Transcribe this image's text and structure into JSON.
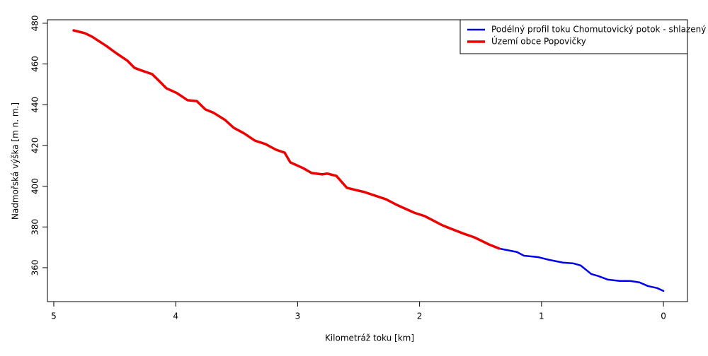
{
  "chart_data": {
    "type": "line",
    "xlabel": "Kilometráž toku [km]",
    "ylabel": "Nadmořská výška [m n. m.]",
    "x": [
      4.837,
      4.744,
      4.686,
      4.57,
      4.483,
      4.396,
      4.338,
      4.28,
      4.193,
      4.135,
      4.077,
      3.99,
      3.902,
      3.827,
      3.757,
      3.688,
      3.595,
      3.525,
      3.438,
      3.351,
      3.264,
      3.177,
      3.107,
      3.06,
      2.956,
      2.886,
      2.799,
      2.758,
      2.683,
      2.596,
      2.451,
      2.276,
      2.189,
      2.044,
      1.957,
      1.812,
      1.725,
      1.638,
      1.551,
      1.434,
      1.347,
      1.202,
      1.144,
      1.028,
      0.941,
      0.825,
      0.738,
      0.679,
      0.592,
      0.534,
      0.459,
      0.36,
      0.273,
      0.197,
      0.128,
      0.052,
      0.0
    ],
    "series": [
      {
        "name": "Podélný profil toku Chomutovický potok - shlazený",
        "color": "#0000ee",
        "width": 2.5,
        "values": [
          476.5,
          475.1,
          473.4,
          468.9,
          465.1,
          461.6,
          458.1,
          456.8,
          455.0,
          451.6,
          448.1,
          445.7,
          442.2,
          441.8,
          437.7,
          436.0,
          432.5,
          428.7,
          425.9,
          422.4,
          420.7,
          417.9,
          416.5,
          411.7,
          408.9,
          406.5,
          405.8,
          406.2,
          405.1,
          399.2,
          397.1,
          393.6,
          390.9,
          387.0,
          385.3,
          380.8,
          378.7,
          376.7,
          374.9,
          371.5,
          369.4,
          367.7,
          365.9,
          365.2,
          363.9,
          362.5,
          362.1,
          361.1,
          356.9,
          355.9,
          354.2,
          353.5,
          353.5,
          352.8,
          351.0,
          350.0,
          348.6
        ]
      },
      {
        "name": "Území obce Popovičky",
        "color": "#ee0000",
        "width": 3.5,
        "values": [
          476.5,
          475.1,
          473.4,
          468.9,
          465.1,
          461.6,
          458.1,
          456.8,
          455.0,
          451.6,
          448.1,
          445.7,
          442.2,
          441.8,
          437.7,
          436.0,
          432.5,
          428.7,
          425.9,
          422.4,
          420.7,
          417.9,
          416.5,
          411.7,
          408.9,
          406.5,
          405.8,
          406.2,
          405.1,
          399.2,
          397.1,
          393.6,
          390.9,
          387.0,
          385.3,
          380.8,
          378.7,
          376.7,
          374.9,
          371.5,
          369.4,
          null,
          null,
          null,
          null,
          null,
          null,
          null,
          null,
          null,
          null,
          null,
          null,
          null,
          null,
          null,
          null
        ]
      }
    ],
    "xlim": [
      5.052,
      -0.197
    ],
    "ylim": [
      343.35,
      481.7
    ],
    "xticks": [
      5,
      4,
      3,
      2,
      1,
      0
    ],
    "yticks": [
      360,
      380,
      400,
      420,
      440,
      460,
      480
    ],
    "legend": "top-right"
  }
}
